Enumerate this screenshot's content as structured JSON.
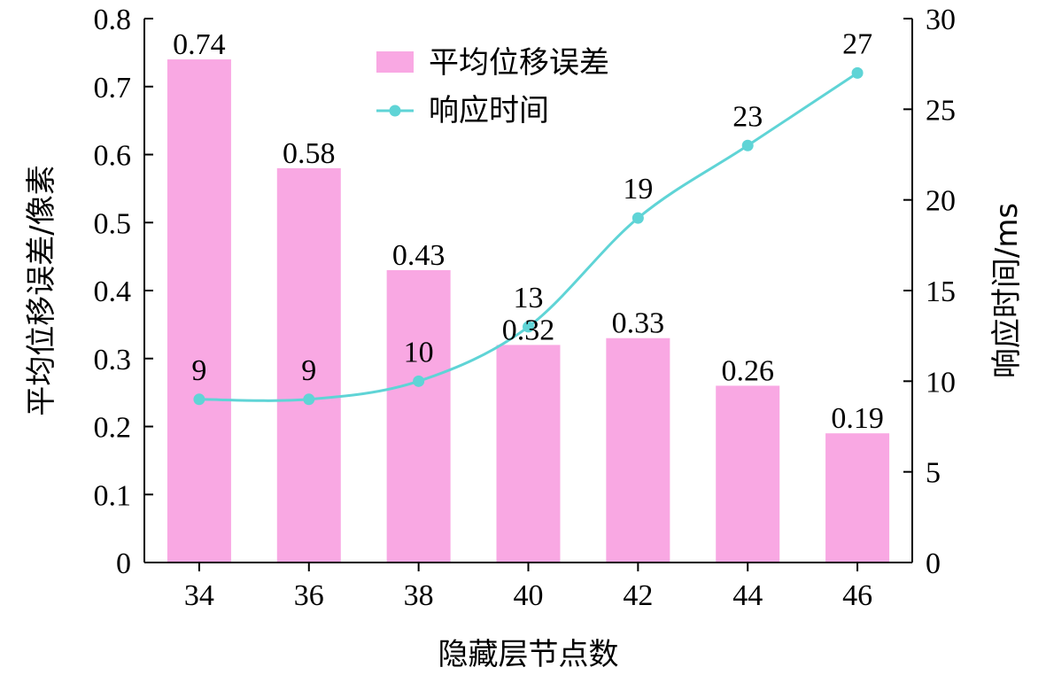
{
  "chart_data": {
    "type": "bar+line",
    "categories": [
      "34",
      "36",
      "38",
      "40",
      "42",
      "44",
      "46"
    ],
    "xlabel": "隐藏层节点数",
    "series": [
      {
        "name": "平均位移误差",
        "type": "bar",
        "axis": "left",
        "color": "#f9a8e3",
        "values": [
          0.74,
          0.58,
          0.43,
          0.32,
          0.33,
          0.26,
          0.19
        ],
        "labels": [
          "0.74",
          "0.58",
          "0.43",
          "0.32",
          "0.33",
          "0.26",
          "0.19"
        ]
      },
      {
        "name": "响应时间",
        "type": "line",
        "axis": "right",
        "color": "#5fd4d6",
        "values": [
          9,
          9,
          10,
          13,
          19,
          23,
          27
        ],
        "labels": [
          "9",
          "9",
          "10",
          "13",
          "19",
          "23",
          "27"
        ]
      }
    ],
    "y_left": {
      "label": "平均位移误差/像素",
      "ylim": [
        0,
        0.8
      ],
      "ticks": [
        "0",
        "0.1",
        "0.2",
        "0.3",
        "0.4",
        "0.5",
        "0.6",
        "0.7",
        "0.8"
      ]
    },
    "y_right": {
      "label": "响应时间/ms",
      "ylim": [
        0,
        30
      ],
      "ticks": [
        "0",
        "5",
        "10",
        "15",
        "20",
        "25",
        "30"
      ]
    },
    "grid": false,
    "legend": "top-center"
  }
}
